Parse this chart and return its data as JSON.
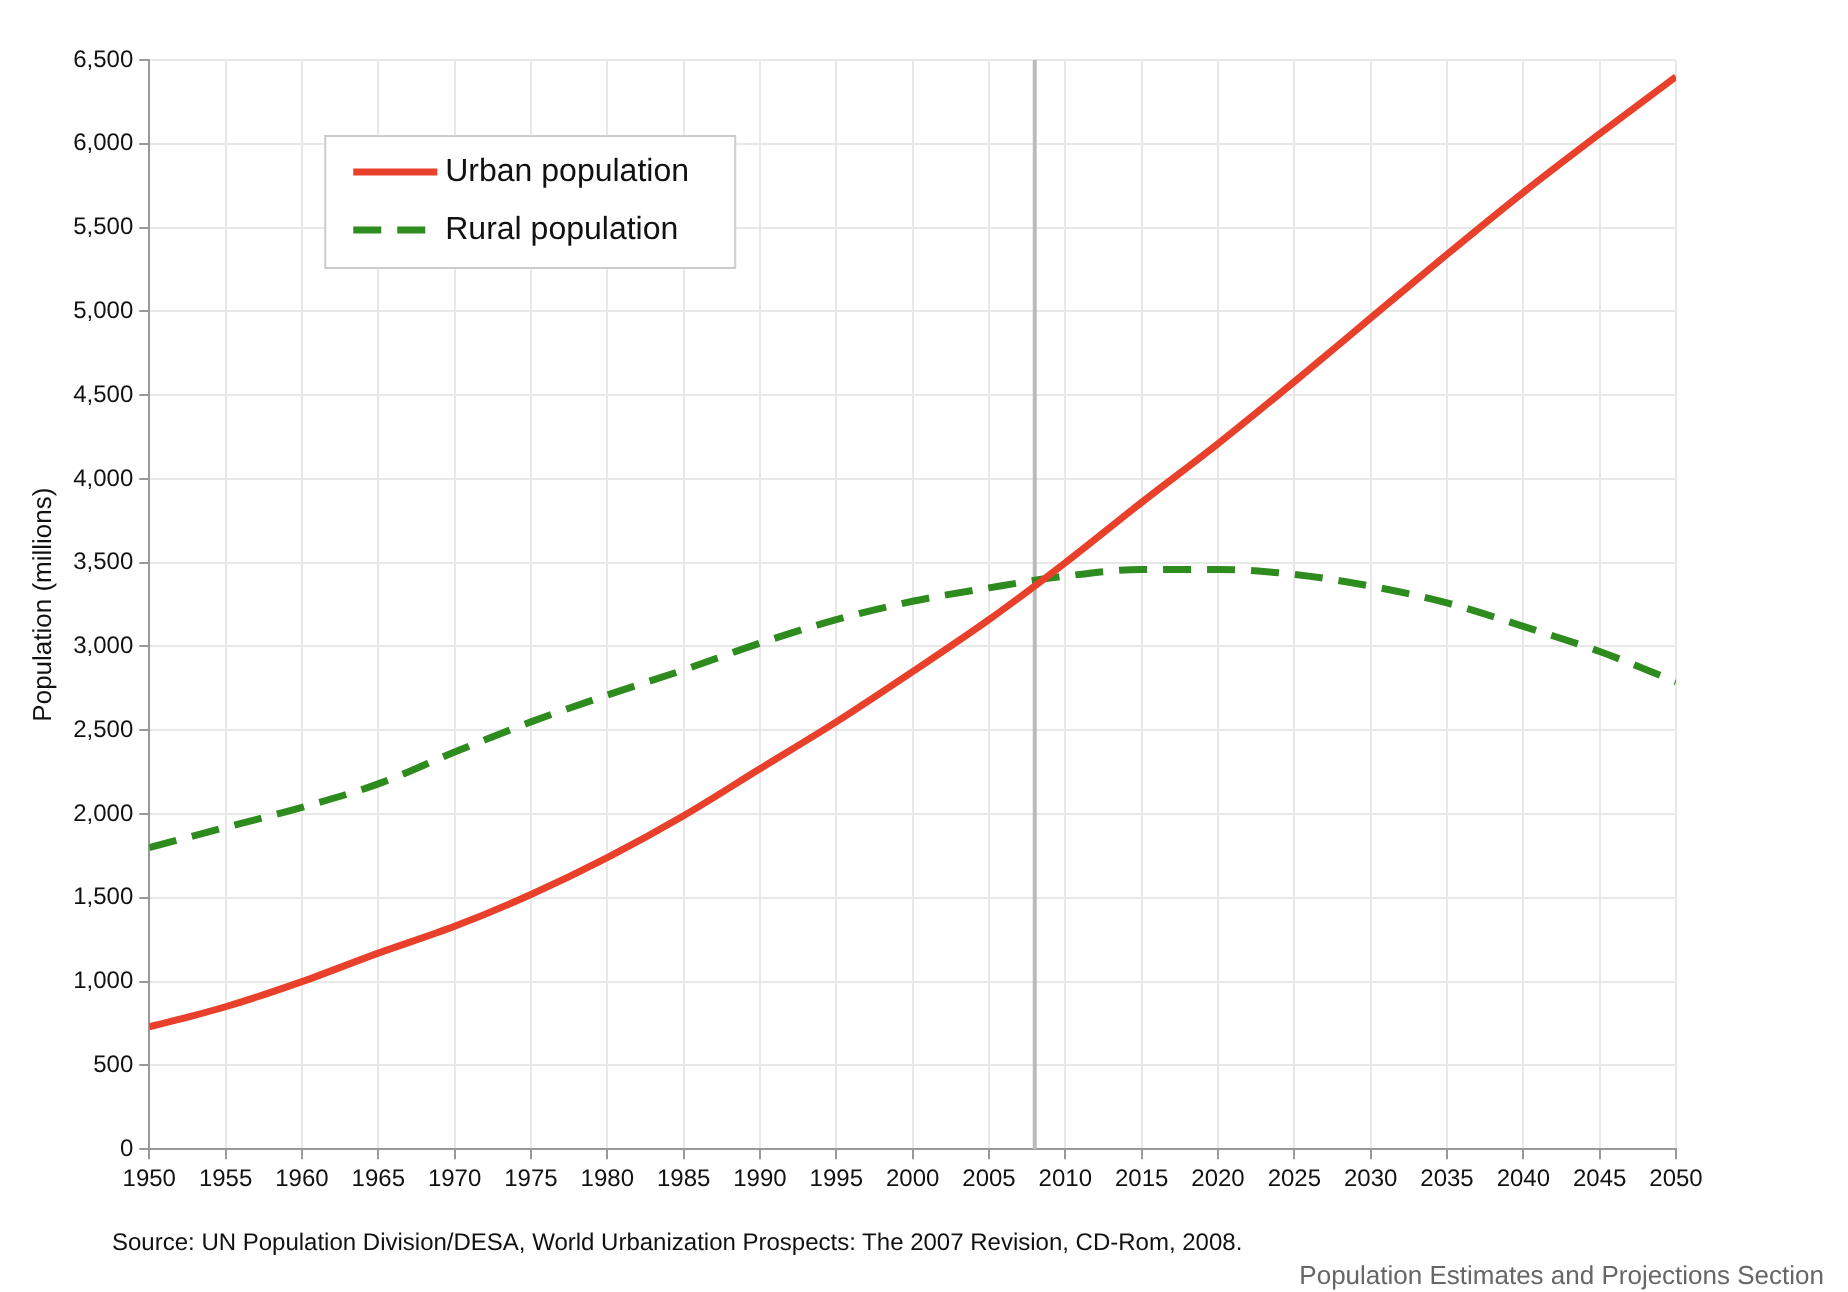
{
  "chart_data": {
    "type": "line",
    "ylabel": "Population (millions)",
    "x": [
      1950,
      1955,
      1960,
      1965,
      1970,
      1975,
      1980,
      1985,
      1990,
      1995,
      2000,
      2005,
      2010,
      2015,
      2020,
      2025,
      2030,
      2035,
      2040,
      2045,
      2050
    ],
    "series": [
      {
        "name": "Urban population",
        "color": "#e8402a",
        "line_style": "solid",
        "values": [
          730,
          850,
          1000,
          1170,
          1330,
          1520,
          1740,
          1990,
          2270,
          2550,
          2850,
          3160,
          3500,
          3860,
          4210,
          4580,
          4960,
          5340,
          5710,
          6060,
          6400
        ]
      },
      {
        "name": "Rural population",
        "color": "#2e8b1e",
        "line_style": "dashed",
        "values": [
          1800,
          1920,
          2040,
          2180,
          2370,
          2550,
          2710,
          2860,
          3020,
          3160,
          3270,
          3350,
          3420,
          3460,
          3460,
          3430,
          3360,
          3260,
          3120,
          2970,
          2790
        ]
      }
    ],
    "xlim": [
      1950,
      2050
    ],
    "xticks": [
      1950,
      1955,
      1960,
      1965,
      1970,
      1975,
      1980,
      1985,
      1990,
      1995,
      2000,
      2005,
      2010,
      2015,
      2020,
      2025,
      2030,
      2035,
      2040,
      2045,
      2050
    ],
    "ylim": [
      0,
      6500
    ],
    "yticks": [
      0,
      500,
      {
        "value": 1000,
        "label": "1,000"
      },
      {
        "value": 1500,
        "label": "1,500"
      },
      {
        "value": 2000,
        "label": "2,000"
      },
      {
        "value": 2500,
        "label": "2,500"
      },
      {
        "value": 3000,
        "label": "3,000"
      },
      {
        "value": 3500,
        "label": "3,500"
      },
      {
        "value": 4000,
        "label": "4,000"
      },
      {
        "value": 4500,
        "label": "4,500"
      },
      {
        "value": 5000,
        "label": "5,000"
      },
      {
        "value": 5500,
        "label": "5,500"
      },
      {
        "value": 6000,
        "label": "6,000"
      },
      {
        "value": 6500,
        "label": "6,500"
      }
    ],
    "ref_lines": [
      {
        "axis": "x",
        "value": 2008,
        "color": "#bbbbbb"
      }
    ],
    "grid": true,
    "legend": "top left",
    "marker": "none",
    "annotations": [
      "Source: UN Population Division/DESA, World Urbanization Prospects: The 2007 Revision, CD-Rom, 2008.",
      "Population Estimates and Projections Section"
    ]
  }
}
